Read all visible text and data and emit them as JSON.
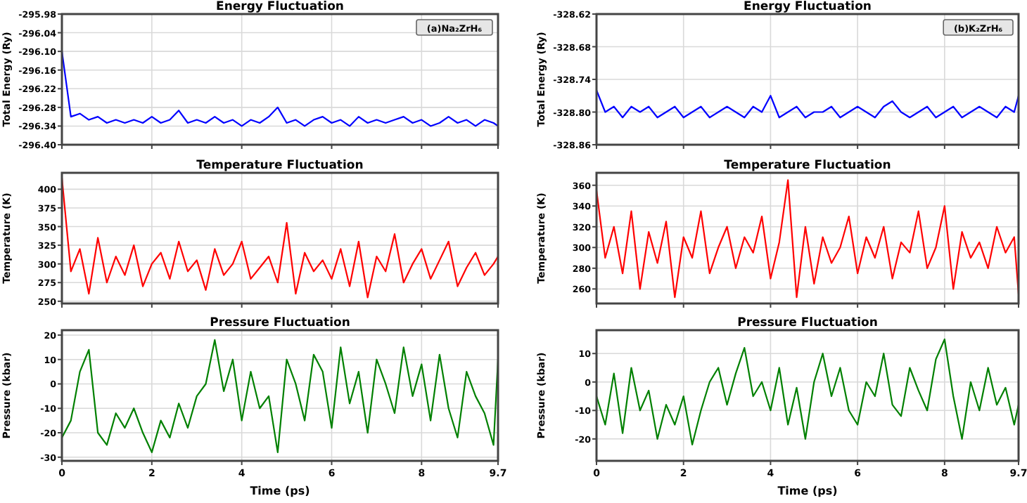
{
  "chart_data": [
    {
      "type": "line",
      "title": "Energy Fluctuation",
      "ylabel": "Total Energy (Ry)",
      "annotations": [
        "(a)Na₂ZrH₆"
      ],
      "grid": true,
      "tick_labels": "y",
      "x": [
        0,
        0.2,
        0.4,
        0.6,
        0.8,
        1,
        1.2,
        1.4,
        1.6,
        1.8,
        2,
        2.2,
        2.4,
        2.6,
        2.8,
        3,
        3.2,
        3.4,
        3.6,
        3.8,
        4,
        4.2,
        4.4,
        4.6,
        4.8,
        5,
        5.2,
        5.4,
        5.6,
        5.8,
        6,
        6.2,
        6.4,
        6.6,
        6.8,
        7,
        7.2,
        7.4,
        7.6,
        7.8,
        8,
        8.2,
        8.4,
        8.6,
        8.8,
        9,
        9.2,
        9.4,
        9.6,
        9.7
      ],
      "series": [
        {
          "color": "#0000ff",
          "values": [
            -296.1,
            -296.31,
            -296.3,
            -296.32,
            -296.31,
            -296.33,
            -296.32,
            -296.33,
            -296.32,
            -296.33,
            -296.31,
            -296.33,
            -296.32,
            -296.29,
            -296.33,
            -296.32,
            -296.33,
            -296.31,
            -296.33,
            -296.32,
            -296.34,
            -296.32,
            -296.33,
            -296.31,
            -296.28,
            -296.33,
            -296.32,
            -296.34,
            -296.32,
            -296.31,
            -296.33,
            -296.32,
            -296.34,
            -296.31,
            -296.33,
            -296.32,
            -296.33,
            -296.32,
            -296.31,
            -296.33,
            -296.32,
            -296.34,
            -296.33,
            -296.31,
            -296.33,
            -296.32,
            -296.34,
            -296.32,
            -296.33,
            -296.34
          ]
        }
      ],
      "xlim": [
        0,
        9.7
      ],
      "xticks": [
        0,
        2,
        4,
        6,
        8,
        9.7
      ],
      "ylim": [
        -296.4,
        -295.98
      ],
      "yticks": [
        -295.98,
        -296.04,
        {
          "value": -296.1,
          "label": "-296.10"
        },
        -296.16,
        -296.22,
        -296.28,
        -296.34,
        {
          "value": -296.4,
          "label": "-296.40"
        }
      ]
    },
    {
      "type": "line",
      "title": "Energy Fluctuation",
      "ylabel": "Total Energy (Ry)",
      "annotations": [
        "(b)K₂ZrH₆"
      ],
      "grid": true,
      "tick_labels": "y",
      "x": [
        0,
        0.2,
        0.4,
        0.6,
        0.8,
        1,
        1.2,
        1.4,
        1.6,
        1.8,
        2,
        2.2,
        2.4,
        2.6,
        2.8,
        3,
        3.2,
        3.4,
        3.6,
        3.8,
        4,
        4.2,
        4.4,
        4.6,
        4.8,
        5,
        5.2,
        5.4,
        5.6,
        5.8,
        6,
        6.2,
        6.4,
        6.6,
        6.8,
        7,
        7.2,
        7.4,
        7.6,
        7.8,
        8,
        8.2,
        8.4,
        8.6,
        8.8,
        9,
        9.2,
        9.4,
        9.6,
        9.7
      ],
      "series": [
        {
          "color": "#0000ff",
          "values": [
            -328.76,
            -328.8,
            -328.79,
            -328.81,
            -328.79,
            -328.8,
            -328.79,
            -328.81,
            -328.8,
            -328.79,
            -328.81,
            -328.8,
            -328.79,
            -328.81,
            -328.8,
            -328.79,
            -328.8,
            -328.81,
            -328.79,
            -328.8,
            -328.77,
            -328.81,
            -328.8,
            -328.79,
            -328.81,
            -328.8,
            -328.8,
            -328.79,
            -328.81,
            -328.8,
            -328.79,
            -328.8,
            -328.81,
            -328.79,
            -328.78,
            -328.8,
            -328.81,
            -328.8,
            -328.79,
            -328.81,
            -328.8,
            -328.79,
            -328.81,
            -328.8,
            -328.79,
            -328.8,
            -328.81,
            -328.79,
            -328.8,
            -328.77
          ]
        }
      ],
      "xlim": [
        0,
        9.7
      ],
      "xticks": [
        0,
        2,
        4,
        6,
        8,
        9.7
      ],
      "ylim": [
        -328.86,
        -328.62
      ],
      "yticks": [
        -328.62,
        -328.68,
        -328.74,
        {
          "value": -328.8,
          "label": "-328.80"
        },
        -328.86
      ]
    },
    {
      "type": "line",
      "title": "Temperature Fluctuation",
      "ylabel": "Temperature (K)",
      "grid": true,
      "tick_labels": "y",
      "x": [
        0,
        0.2,
        0.4,
        0.6,
        0.8,
        1,
        1.2,
        1.4,
        1.6,
        1.8,
        2,
        2.2,
        2.4,
        2.6,
        2.8,
        3,
        3.2,
        3.4,
        3.6,
        3.8,
        4,
        4.2,
        4.4,
        4.6,
        4.8,
        5,
        5.2,
        5.4,
        5.6,
        5.8,
        6,
        6.2,
        6.4,
        6.6,
        6.8,
        7,
        7.2,
        7.4,
        7.6,
        7.8,
        8,
        8.2,
        8.4,
        8.6,
        8.8,
        9,
        9.2,
        9.4,
        9.6,
        9.7
      ],
      "series": [
        {
          "color": "#ff0000",
          "values": [
            415,
            290,
            320,
            260,
            335,
            275,
            310,
            285,
            325,
            270,
            300,
            315,
            280,
            330,
            290,
            305,
            265,
            320,
            285,
            300,
            330,
            280,
            295,
            310,
            275,
            355,
            260,
            315,
            290,
            305,
            280,
            320,
            270,
            330,
            255,
            310,
            290,
            340,
            275,
            300,
            320,
            280,
            305,
            330,
            270,
            295,
            315,
            285,
            300,
            310
          ]
        }
      ],
      "xlim": [
        0,
        9.7
      ],
      "xticks": [
        0,
        2,
        4,
        6,
        8,
        9.7
      ],
      "ylim": [
        247,
        422
      ],
      "yticks": [
        250,
        275,
        300,
        325,
        350,
        375,
        400
      ]
    },
    {
      "type": "line",
      "title": "Temperature Fluctuation",
      "ylabel": "Temperature (K)",
      "grid": true,
      "tick_labels": "y",
      "x": [
        0,
        0.2,
        0.4,
        0.6,
        0.8,
        1,
        1.2,
        1.4,
        1.6,
        1.8,
        2,
        2.2,
        2.4,
        2.6,
        2.8,
        3,
        3.2,
        3.4,
        3.6,
        3.8,
        4,
        4.2,
        4.4,
        4.6,
        4.8,
        5,
        5.2,
        5.4,
        5.6,
        5.8,
        6,
        6.2,
        6.4,
        6.6,
        6.8,
        7,
        7.2,
        7.4,
        7.6,
        7.8,
        8,
        8.2,
        8.4,
        8.6,
        8.8,
        9,
        9.2,
        9.4,
        9.6,
        9.7
      ],
      "series": [
        {
          "color": "#ff0000",
          "values": [
            355,
            290,
            320,
            275,
            335,
            260,
            315,
            285,
            325,
            252,
            310,
            290,
            335,
            275,
            300,
            320,
            280,
            310,
            295,
            330,
            270,
            305,
            365,
            252,
            320,
            265,
            310,
            285,
            300,
            330,
            275,
            310,
            290,
            320,
            270,
            305,
            295,
            335,
            280,
            300,
            340,
            260,
            315,
            290,
            305,
            280,
            320,
            295,
            310,
            255
          ]
        }
      ],
      "xlim": [
        0,
        9.7
      ],
      "xticks": [
        0,
        2,
        4,
        6,
        8,
        9.7
      ],
      "ylim": [
        246,
        372
      ],
      "yticks": [
        260,
        280,
        300,
        320,
        340,
        360
      ]
    },
    {
      "type": "line",
      "title": "Pressure Fluctuation",
      "xlabel": "Time (ps)",
      "ylabel": "Pressure (kbar)",
      "grid": true,
      "x": [
        0,
        0.2,
        0.4,
        0.6,
        0.8,
        1,
        1.2,
        1.4,
        1.6,
        1.8,
        2,
        2.2,
        2.4,
        2.6,
        2.8,
        3,
        3.2,
        3.4,
        3.6,
        3.8,
        4,
        4.2,
        4.4,
        4.6,
        4.8,
        5,
        5.2,
        5.4,
        5.6,
        5.8,
        6,
        6.2,
        6.4,
        6.6,
        6.8,
        7,
        7.2,
        7.4,
        7.6,
        7.8,
        8,
        8.2,
        8.4,
        8.6,
        8.8,
        9,
        9.2,
        9.4,
        9.6,
        9.7
      ],
      "series": [
        {
          "color": "#008000",
          "values": [
            -22,
            -15,
            5,
            14,
            -20,
            -25,
            -12,
            -18,
            -10,
            -20,
            -28,
            -15,
            -22,
            -8,
            -18,
            -5,
            0,
            18,
            -3,
            10,
            -15,
            5,
            -10,
            -5,
            -28,
            10,
            0,
            -15,
            12,
            5,
            -18,
            15,
            -8,
            5,
            -20,
            10,
            0,
            -12,
            15,
            -5,
            8,
            -15,
            12,
            -10,
            -22,
            5,
            -5,
            -12,
            -25,
            10
          ]
        }
      ],
      "xlim": [
        0,
        9.7
      ],
      "xticks": [
        0,
        2,
        4,
        6,
        8,
        9.7
      ],
      "ylim": [
        -31.5,
        22
      ],
      "yticks": [
        -30,
        -20,
        -10,
        0,
        10,
        20
      ]
    },
    {
      "type": "line",
      "title": "Pressure Fluctuation",
      "xlabel": "Time (ps)",
      "ylabel": "Pressure (kbar)",
      "grid": true,
      "x": [
        0,
        0.2,
        0.4,
        0.6,
        0.8,
        1,
        1.2,
        1.4,
        1.6,
        1.8,
        2,
        2.2,
        2.4,
        2.6,
        2.8,
        3,
        3.2,
        3.4,
        3.6,
        3.8,
        4,
        4.2,
        4.4,
        4.6,
        4.8,
        5,
        5.2,
        5.4,
        5.6,
        5.8,
        6,
        6.2,
        6.4,
        6.6,
        6.8,
        7,
        7.2,
        7.4,
        7.6,
        7.8,
        8,
        8.2,
        8.4,
        8.6,
        8.8,
        9,
        9.2,
        9.4,
        9.6,
        9.7
      ],
      "series": [
        {
          "color": "#008000",
          "values": [
            -5,
            -15,
            3,
            -18,
            5,
            -10,
            -3,
            -20,
            -8,
            -15,
            -5,
            -22,
            -10,
            0,
            5,
            -8,
            3,
            12,
            -5,
            0,
            -10,
            5,
            -15,
            -2,
            -20,
            0,
            10,
            -5,
            5,
            -10,
            -15,
            0,
            -5,
            10,
            -8,
            -12,
            5,
            -3,
            -10,
            8,
            15,
            -5,
            -20,
            0,
            -10,
            5,
            -8,
            -2,
            -15,
            -8
          ]
        }
      ],
      "xlim": [
        0,
        9.7
      ],
      "xticks": [
        0,
        2,
        4,
        6,
        8,
        9.7
      ],
      "ylim": [
        -27.7,
        18.2
      ],
      "yticks": [
        -20,
        -10,
        0,
        10
      ]
    }
  ]
}
